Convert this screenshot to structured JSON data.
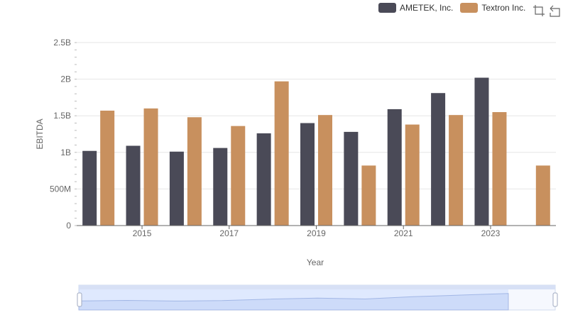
{
  "chart_data": {
    "type": "bar",
    "categories": [
      "2014",
      "2015",
      "2016",
      "2017",
      "2018",
      "2019",
      "2020",
      "2021",
      "2022",
      "2023",
      "2024"
    ],
    "series": [
      {
        "name": "AMETEK, Inc.",
        "values": [
          1.02,
          1.09,
          1.01,
          1.06,
          1.26,
          1.4,
          1.28,
          1.59,
          1.81,
          2.02,
          null
        ]
      },
      {
        "name": "Textron Inc.",
        "values": [
          1.57,
          1.6,
          1.48,
          1.36,
          1.97,
          1.51,
          0.82,
          1.38,
          1.51,
          1.55,
          0.82
        ]
      }
    ],
    "xlabel": "Year",
    "ylabel": "EBITDA",
    "ylim": [
      0,
      2.5
    ],
    "y_ticks": [
      "0",
      "500M",
      "1B",
      "1.5B",
      "2B",
      "2.5B"
    ],
    "x_tick_labels": [
      "2015",
      "2017",
      "2019",
      "2021",
      "2023"
    ],
    "grid": true,
    "legend_position": "top-right",
    "colors": {
      "AMETEK, Inc.": "#4a4a57",
      "Textron Inc.": "#c8905e"
    },
    "datazoom": true
  },
  "toolbox": {
    "icons": [
      "zoom-icon",
      "restore-icon"
    ]
  }
}
